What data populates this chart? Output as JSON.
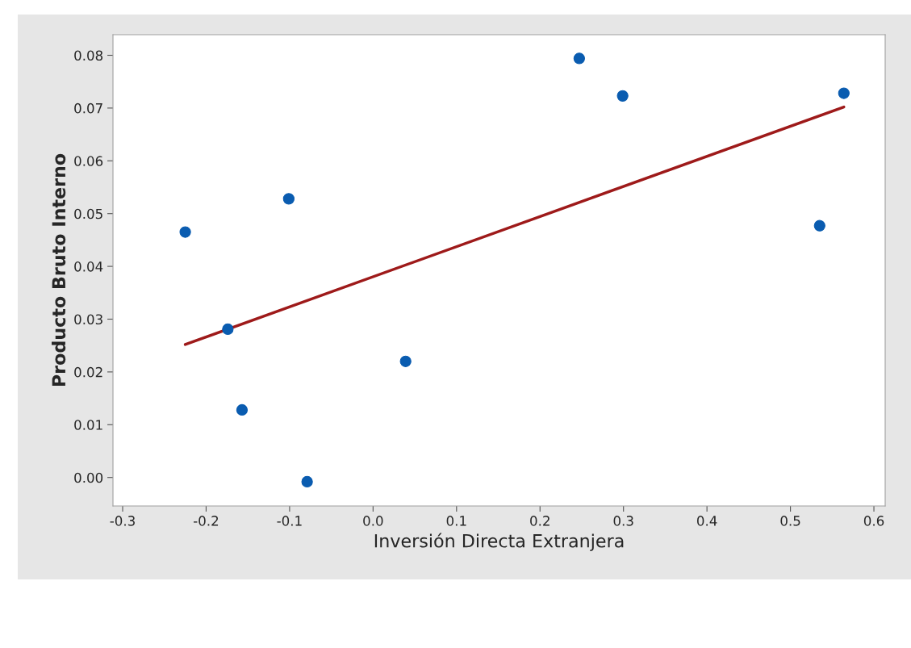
{
  "chart_data": {
    "type": "scatter",
    "xlabel": "Inversión Directa Extranjera",
    "ylabel": "Producto Bruto Interno",
    "x": [
      -0.225,
      -0.174,
      -0.157,
      -0.101,
      -0.079,
      0.039,
      0.247,
      0.299,
      0.535,
      0.564
    ],
    "series": [
      {
        "color": "#0a5cb0",
        "marker": "circle",
        "values": [
          0.0465,
          0.0281,
          0.0128,
          0.0528,
          -0.0008,
          0.022,
          0.0794,
          0.0723,
          0.0477,
          0.0728
        ]
      },
      {
        "type": "line",
        "color": "#9e1a1a",
        "marker": "none",
        "line_style": "solid",
        "x": [
          -0.225,
          0.564
        ],
        "values": [
          0.0252,
          0.0702
        ]
      }
    ],
    "xlim": [
      -0.3116,
      0.6135
    ],
    "ylim": [
      -0.0054,
      0.0839
    ],
    "xticks": [
      -0.3,
      -0.2,
      -0.1,
      {
        "value": 0.0,
        "label": "0.0"
      },
      0.1,
      0.2,
      0.3,
      0.4,
      0.5,
      0.6
    ],
    "yticks": [
      {
        "value": 0.0,
        "label": "0.00"
      },
      0.01,
      0.02,
      0.03,
      0.04,
      0.05,
      0.06,
      0.07,
      0.08
    ],
    "grid": false,
    "legend": false
  }
}
